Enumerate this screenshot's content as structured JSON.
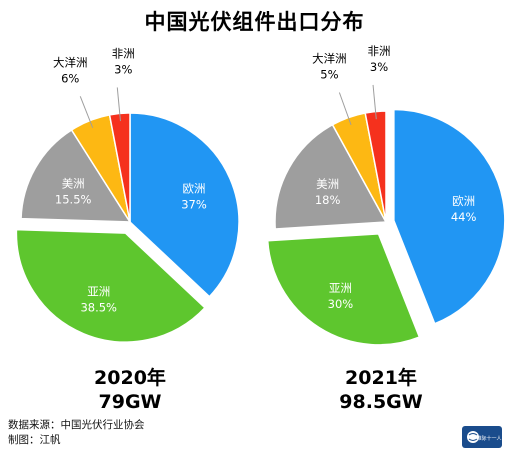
{
  "title": "中国光伏组件出口分布",
  "chart_data": [
    {
      "type": "pie",
      "year_label": "2020年",
      "total_label": "79GW",
      "slices": [
        {
          "name": "欧洲",
          "value": 37,
          "label": "37%",
          "color": "#2196F3"
        },
        {
          "name": "亚洲",
          "value": 38.5,
          "label": "38.5%",
          "color": "#5EC62E"
        },
        {
          "name": "美洲",
          "value": 15.5,
          "label": "15.5%",
          "color": "#9E9E9E"
        },
        {
          "name": "大洋洲",
          "value": 6,
          "label": "6%",
          "color": "#FDB813"
        },
        {
          "name": "非洲",
          "value": 3,
          "label": "3%",
          "color": "#F5311D"
        }
      ]
    },
    {
      "type": "pie",
      "year_label": "2021年",
      "total_label": "98.5GW",
      "slices": [
        {
          "name": "欧洲",
          "value": 44,
          "label": "44%",
          "color": "#2196F3"
        },
        {
          "name": "亚洲",
          "value": 30,
          "label": "30%",
          "color": "#5EC62E"
        },
        {
          "name": "美洲",
          "value": 18,
          "label": "18%",
          "color": "#9E9E9E"
        },
        {
          "name": "大洋洲",
          "value": 5,
          "label": "5%",
          "color": "#FDB813"
        },
        {
          "name": "非洲",
          "value": 3,
          "label": "3%",
          "color": "#F5311D"
        }
      ]
    }
  ],
  "source": {
    "line1": "数据来源：中国光伏行业协会",
    "line2": "制图：江帆"
  },
  "logo": {
    "text": "维际十一人",
    "icon": "globe-icon",
    "bg_color": "#1A4C8C"
  }
}
